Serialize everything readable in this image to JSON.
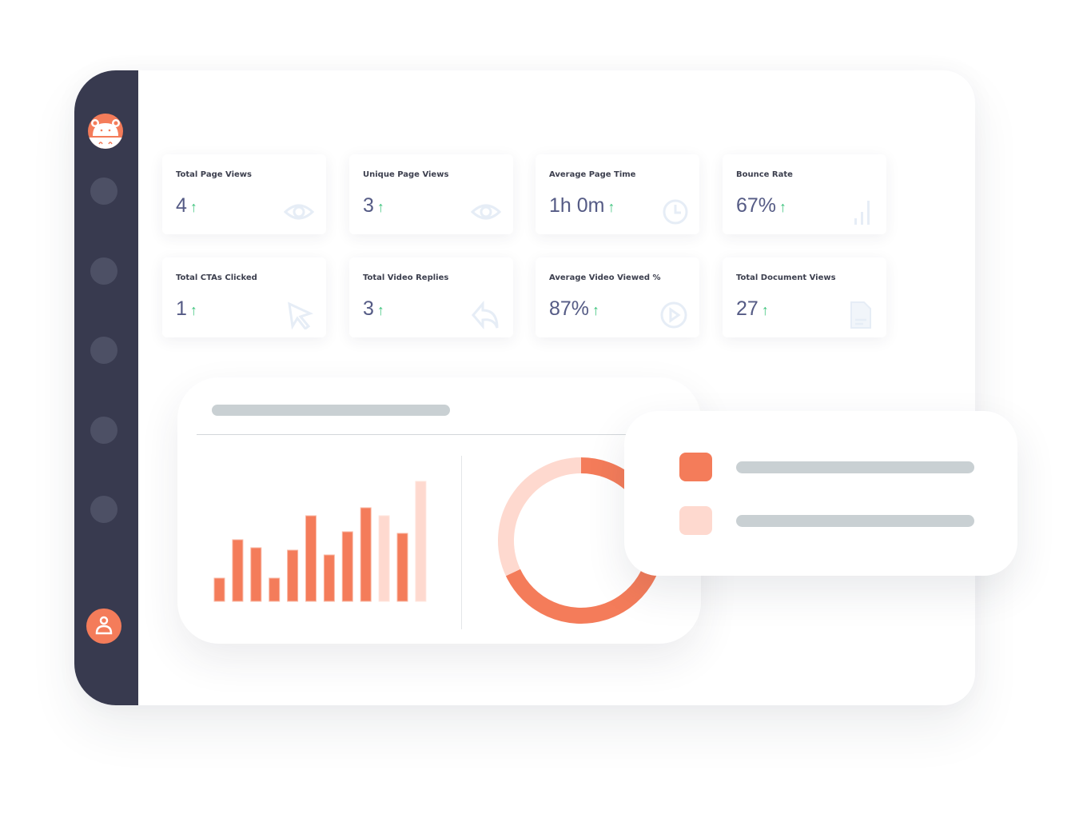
{
  "colors": {
    "sidebar": "#383a4f",
    "accent": "#f47c5a",
    "accent_light": "#fed9cf",
    "up": "#3fc47e",
    "value": "#555b85",
    "icon": "#e6edf6"
  },
  "sidebar": {
    "logo": "hippo-logo-icon",
    "nav_items": 5,
    "user": "user-icon"
  },
  "stats": [
    {
      "label": "Total Page Views",
      "value": "4",
      "trend": "↑",
      "icon": "eye-icon"
    },
    {
      "label": "Unique Page Views",
      "value": "3",
      "trend": "↑",
      "icon": "eye-icon"
    },
    {
      "label": "Average Page Time",
      "value": "1h 0m",
      "trend": "↑",
      "icon": "clock-icon"
    },
    {
      "label": "Bounce Rate",
      "value": "67%",
      "trend": "↑",
      "icon": "bar-chart-icon"
    },
    {
      "label": "Total CTAs Clicked",
      "value": "1",
      "trend": "↑",
      "icon": "cursor-icon"
    },
    {
      "label": "Total Video Replies",
      "value": "3",
      "trend": "↑",
      "icon": "reply-icon"
    },
    {
      "label": "Average Video Viewed %",
      "value": "87%",
      "trend": "↑",
      "icon": "play-icon"
    },
    {
      "label": "Total Document Views",
      "value": "27",
      "trend": "↑",
      "icon": "document-icon"
    }
  ],
  "chart_data": [
    {
      "type": "bar",
      "values": [
        29,
        77,
        67,
        29,
        64,
        107,
        58,
        87,
        117,
        107,
        85,
        150
      ],
      "highlight_light": [
        9,
        11
      ]
    },
    {
      "type": "pie",
      "variant": "donut",
      "values": [
        68,
        32
      ],
      "colors": [
        "#f47c5a",
        "#fed9cf"
      ]
    }
  ]
}
